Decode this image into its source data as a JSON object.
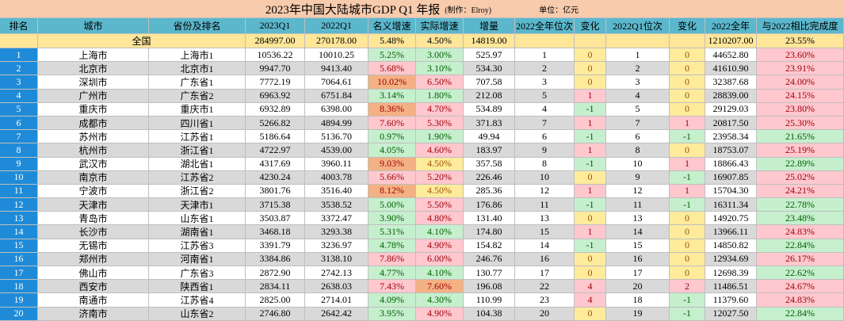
{
  "title": "2023年中国大陆城市GDP Q1 年报",
  "credit": "(制作：Elroy)",
  "unit": "单位：亿元",
  "header": [
    "排名",
    "城市",
    "省份及排名",
    "2023Q1",
    "2022Q1",
    "名义增速",
    "实际增速",
    "增量",
    "2022全年位次",
    "变化",
    "2022Q1位次",
    "变化",
    "2022全年",
    "与2022相比完成度"
  ],
  "national": {
    "label": "全国",
    "q1_2023": "284997.00",
    "q1_2022": "270178.00",
    "nominal": "5.48%",
    "real": "4.50%",
    "increase": "14819.00",
    "full_2022": "1210207.00",
    "completion": "23.55%"
  },
  "colors": {
    "pink": "#ffc7ce",
    "green": "#c6efce",
    "yellow": "#ffeb9c",
    "orange": "#f4b183"
  },
  "rows": [
    [
      "1",
      "上海市",
      "上海市1",
      "10536.22",
      "10010.25",
      "5.25%",
      "3.00%",
      "525.97",
      "1",
      "0",
      "1",
      "0",
      "44652.80",
      "23.60%"
    ],
    [
      "2",
      "北京市",
      "北京市1",
      "9947.70",
      "9413.40",
      "5.68%",
      "3.10%",
      "534.30",
      "2",
      "0",
      "2",
      "0",
      "41610.90",
      "23.91%"
    ],
    [
      "3",
      "深圳市",
      "广东省1",
      "7772.19",
      "7064.61",
      "10.02%",
      "6.50%",
      "707.58",
      "3",
      "0",
      "3",
      "0",
      "32387.68",
      "24.00%"
    ],
    [
      "4",
      "广州市",
      "广东省2",
      "6963.92",
      "6751.84",
      "3.14%",
      "1.80%",
      "212.08",
      "5",
      "1",
      "4",
      "0",
      "28839.00",
      "24.15%"
    ],
    [
      "5",
      "重庆市",
      "重庆市1",
      "6932.89",
      "6398.00",
      "8.36%",
      "4.70%",
      "534.89",
      "4",
      "-1",
      "5",
      "0",
      "29129.03",
      "23.80%"
    ],
    [
      "6",
      "成都市",
      "四川省1",
      "5266.82",
      "4894.99",
      "7.60%",
      "5.30%",
      "371.83",
      "7",
      "1",
      "7",
      "1",
      "20817.50",
      "25.30%"
    ],
    [
      "7",
      "苏州市",
      "江苏省1",
      "5186.64",
      "5136.70",
      "0.97%",
      "1.90%",
      "49.94",
      "6",
      "-1",
      "6",
      "-1",
      "23958.34",
      "21.65%"
    ],
    [
      "8",
      "杭州市",
      "浙江省1",
      "4722.97",
      "4539.00",
      "4.05%",
      "4.60%",
      "183.97",
      "9",
      "1",
      "8",
      "0",
      "18753.07",
      "25.19%"
    ],
    [
      "9",
      "武汉市",
      "湖北省1",
      "4317.69",
      "3960.11",
      "9.03%",
      "4.50%",
      "357.58",
      "8",
      "-1",
      "10",
      "1",
      "18866.43",
      "22.89%"
    ],
    [
      "10",
      "南京市",
      "江苏省2",
      "4230.24",
      "4003.78",
      "5.66%",
      "5.20%",
      "226.46",
      "10",
      "0",
      "9",
      "-1",
      "16907.85",
      "25.02%"
    ],
    [
      "11",
      "宁波市",
      "浙江省2",
      "3801.76",
      "3516.40",
      "8.12%",
      "4.50%",
      "285.36",
      "12",
      "1",
      "12",
      "1",
      "15704.30",
      "24.21%"
    ],
    [
      "12",
      "天津市",
      "天津市1",
      "3715.38",
      "3538.52",
      "5.00%",
      "5.50%",
      "176.86",
      "11",
      "-1",
      "11",
      "-1",
      "16311.34",
      "22.78%"
    ],
    [
      "13",
      "青岛市",
      "山东省1",
      "3503.87",
      "3372.47",
      "3.90%",
      "4.80%",
      "131.40",
      "13",
      "0",
      "13",
      "0",
      "14920.75",
      "23.48%"
    ],
    [
      "14",
      "长沙市",
      "湖南省1",
      "3468.18",
      "3293.38",
      "5.31%",
      "4.10%",
      "174.80",
      "15",
      "1",
      "14",
      "0",
      "13966.11",
      "24.83%"
    ],
    [
      "15",
      "无锡市",
      "江苏省3",
      "3391.79",
      "3236.97",
      "4.78%",
      "4.90%",
      "154.82",
      "14",
      "-1",
      "15",
      "0",
      "14850.82",
      "22.84%"
    ],
    [
      "16",
      "郑州市",
      "河南省1",
      "3384.86",
      "3138.10",
      "7.86%",
      "6.00%",
      "246.76",
      "16",
      "0",
      "16",
      "0",
      "12934.69",
      "26.17%"
    ],
    [
      "17",
      "佛山市",
      "广东省3",
      "2872.90",
      "2742.13",
      "4.77%",
      "4.10%",
      "130.77",
      "17",
      "0",
      "17",
      "0",
      "12698.39",
      "22.62%"
    ],
    [
      "18",
      "西安市",
      "陕西省1",
      "2834.11",
      "2638.03",
      "7.43%",
      "7.60%",
      "196.08",
      "22",
      "4",
      "20",
      "2",
      "11486.51",
      "24.67%"
    ],
    [
      "19",
      "南通市",
      "江苏省4",
      "2825.00",
      "2714.01",
      "4.09%",
      "4.30%",
      "110.99",
      "23",
      "4",
      "18",
      "-1",
      "11379.60",
      "24.83%"
    ],
    [
      "20",
      "济南市",
      "山东省2",
      "2746.80",
      "2642.42",
      "3.95%",
      "4.90%",
      "104.38",
      "20",
      "0",
      "19",
      "-1",
      "12027.50",
      "22.84%"
    ]
  ],
  "row_colors": [
    [
      "green",
      "green",
      "pink"
    ],
    [
      "pink",
      "green",
      "pink"
    ],
    [
      "orange",
      "pink",
      "pink"
    ],
    [
      "green",
      "green",
      "pink"
    ],
    [
      "orange",
      "pink",
      "pink"
    ],
    [
      "pink",
      "pink",
      "pink"
    ],
    [
      "green",
      "green",
      "green"
    ],
    [
      "green",
      "pink",
      "pink"
    ],
    [
      "orange",
      "yellow",
      "green"
    ],
    [
      "pink",
      "pink",
      "pink"
    ],
    [
      "orange",
      "yellow",
      "pink"
    ],
    [
      "green",
      "pink",
      "green"
    ],
    [
      "green",
      "pink",
      "green"
    ],
    [
      "green",
      "green",
      "pink"
    ],
    [
      "green",
      "pink",
      "green"
    ],
    [
      "pink",
      "pink",
      "pink"
    ],
    [
      "green",
      "green",
      "green"
    ],
    [
      "pink",
      "orange",
      "pink"
    ],
    [
      "green",
      "green",
      "pink"
    ],
    [
      "green",
      "pink",
      "green"
    ]
  ]
}
